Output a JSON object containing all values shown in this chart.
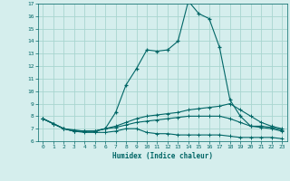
{
  "xlabel": "Humidex (Indice chaleur)",
  "xlim": [
    -0.5,
    23.5
  ],
  "ylim": [
    6,
    17
  ],
  "yticks": [
    6,
    7,
    8,
    9,
    10,
    11,
    12,
    13,
    14,
    15,
    16,
    17
  ],
  "xticks": [
    0,
    1,
    2,
    3,
    4,
    5,
    6,
    7,
    8,
    9,
    10,
    11,
    12,
    13,
    14,
    15,
    16,
    17,
    18,
    19,
    20,
    21,
    22,
    23
  ],
  "bg_color": "#d5eeed",
  "line_color": "#006666",
  "grid_color": "#a8d5d0",
  "lines": [
    {
      "x": [
        0,
        1,
        2,
        3,
        4,
        5,
        6,
        7,
        8,
        9,
        10,
        11,
        12,
        13,
        14,
        15,
        16,
        17,
        18,
        19,
        20,
        21,
        22,
        23
      ],
      "y": [
        7.8,
        7.4,
        7.0,
        6.8,
        6.8,
        6.8,
        7.0,
        8.3,
        10.5,
        11.8,
        13.3,
        13.2,
        13.3,
        14.0,
        17.2,
        16.2,
        15.8,
        13.5,
        9.3,
        8.0,
        7.2,
        7.2,
        7.1,
        6.9
      ]
    },
    {
      "x": [
        0,
        1,
        2,
        3,
        4,
        5,
        6,
        7,
        8,
        9,
        10,
        11,
        12,
        13,
        14,
        15,
        16,
        17,
        18,
        19,
        20,
        21,
        22,
        23
      ],
      "y": [
        7.8,
        7.4,
        7.0,
        6.9,
        6.8,
        6.8,
        7.0,
        7.2,
        7.5,
        7.8,
        8.0,
        8.1,
        8.2,
        8.3,
        8.5,
        8.6,
        8.7,
        8.8,
        9.0,
        8.5,
        8.0,
        7.5,
        7.2,
        7.0
      ]
    },
    {
      "x": [
        0,
        1,
        2,
        3,
        4,
        5,
        6,
        7,
        8,
        9,
        10,
        11,
        12,
        13,
        14,
        15,
        16,
        17,
        18,
        19,
        20,
        21,
        22,
        23
      ],
      "y": [
        7.8,
        7.4,
        7.0,
        6.8,
        6.8,
        6.8,
        7.0,
        7.1,
        7.3,
        7.5,
        7.6,
        7.7,
        7.8,
        7.9,
        8.0,
        8.0,
        8.0,
        8.0,
        7.8,
        7.5,
        7.2,
        7.1,
        7.0,
        6.8
      ]
    },
    {
      "x": [
        0,
        1,
        2,
        3,
        4,
        5,
        6,
        7,
        8,
        9,
        10,
        11,
        12,
        13,
        14,
        15,
        16,
        17,
        18,
        19,
        20,
        21,
        22,
        23
      ],
      "y": [
        7.8,
        7.4,
        7.0,
        6.8,
        6.7,
        6.7,
        6.7,
        6.8,
        7.0,
        7.0,
        6.7,
        6.6,
        6.6,
        6.5,
        6.5,
        6.5,
        6.5,
        6.5,
        6.4,
        6.3,
        6.3,
        6.3,
        6.3,
        6.2
      ]
    }
  ]
}
